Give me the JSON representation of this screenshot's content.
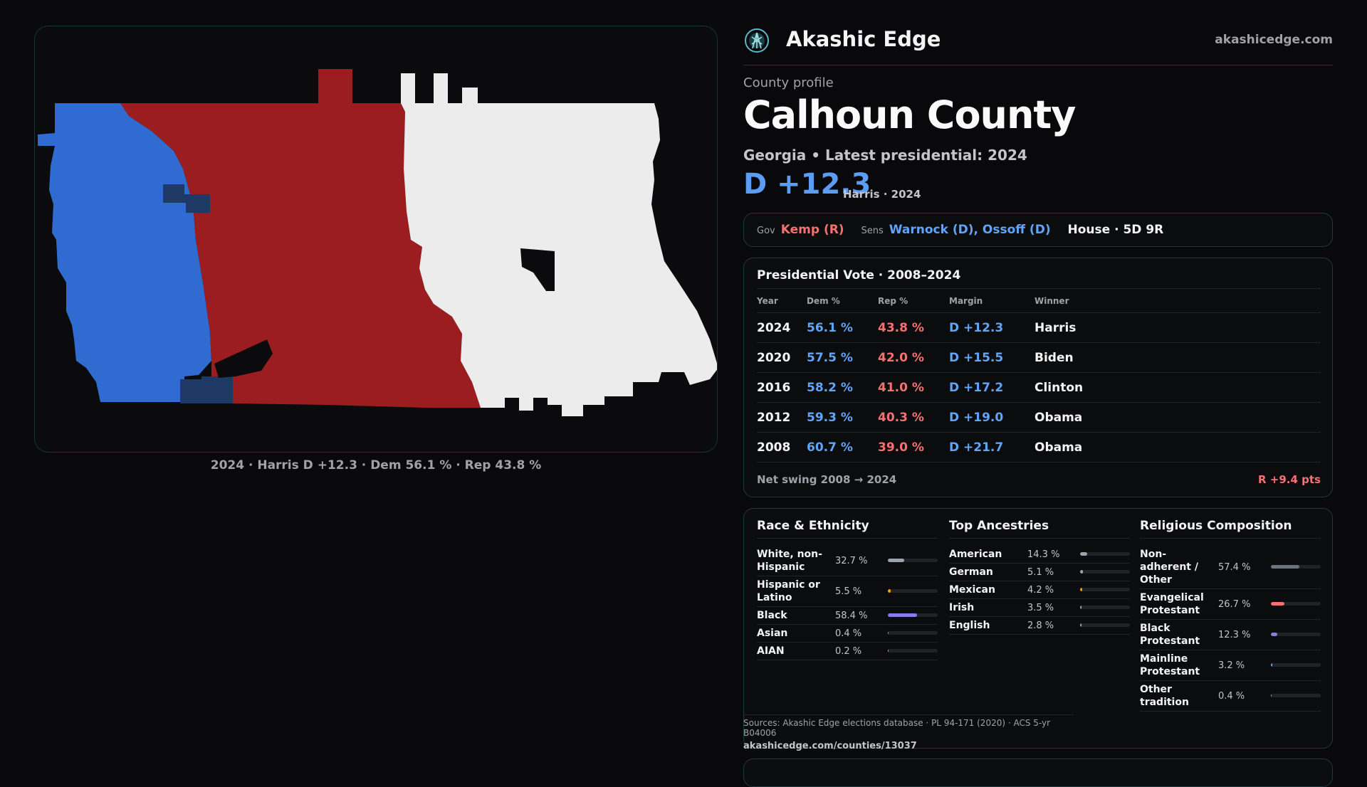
{
  "brand": {
    "name": "Akashic Edge",
    "url": "akashicedge.com"
  },
  "eyebrow": "County profile",
  "county": "Calhoun County",
  "subtitle": "Georgia • Latest presidential: 2024",
  "headline_margin": "D +12.3",
  "headline_note": "Harris · 2024",
  "map": {
    "caption": "2024 · Harris D +12.3 · Dem 56.1 % · Rep 43.8 %",
    "colors": {
      "dem": "#2f6bd0",
      "rep": "#9b1d20",
      "neutral": "#ececed"
    }
  },
  "officials": {
    "gov_label": "Gov",
    "gov": "Kemp (R)",
    "sens_label": "Sens",
    "sens": "Warnock (D), Ossoff (D)",
    "house": "House · 5D 9R"
  },
  "presidential": {
    "title": "Presidential Vote · 2008–2024",
    "headers": {
      "year": "Year",
      "dem": "Dem %",
      "rep": "Rep %",
      "margin": "Margin",
      "winner": "Winner"
    },
    "rows": [
      {
        "year": "2024",
        "dem": "56.1 %",
        "rep": "43.8 %",
        "margin": "D +12.3",
        "winner": "Harris"
      },
      {
        "year": "2020",
        "dem": "57.5 %",
        "rep": "42.0 %",
        "margin": "D +15.5",
        "winner": "Biden"
      },
      {
        "year": "2016",
        "dem": "58.2 %",
        "rep": "41.0 %",
        "margin": "D +17.2",
        "winner": "Clinton"
      },
      {
        "year": "2012",
        "dem": "59.3 %",
        "rep": "40.3 %",
        "margin": "D +19.0",
        "winner": "Obama"
      },
      {
        "year": "2008",
        "dem": "60.7 %",
        "rep": "39.0 %",
        "margin": "D +21.7",
        "winner": "Obama"
      }
    ],
    "swing_label": "Net swing 2008 → 2024",
    "swing_value": "R +9.4 pts"
  },
  "race": {
    "title": "Race & Ethnicity",
    "items": [
      {
        "label": "White, non-Hispanic",
        "value": "32.7 %",
        "pct": 32.7,
        "color": "#9ca3af"
      },
      {
        "label": "Hispanic or Latino",
        "value": "5.5 %",
        "pct": 5.5,
        "color": "#f59e0b"
      },
      {
        "label": "Black",
        "value": "58.4 %",
        "pct": 58.4,
        "color": "#8b7be8"
      },
      {
        "label": "Asian",
        "value": "0.4 %",
        "pct": 0.4,
        "color": "#34d399"
      },
      {
        "label": "AIAN",
        "value": "0.2 %",
        "pct": 0.2,
        "color": "#f472b6"
      }
    ]
  },
  "ancestry": {
    "title": "Top Ancestries",
    "items": [
      {
        "label": "American",
        "value": "14.3 %",
        "pct": 14.3,
        "color": "#9ca3af"
      },
      {
        "label": "German",
        "value": "5.1 %",
        "pct": 5.1,
        "color": "#9ca3af"
      },
      {
        "label": "Mexican",
        "value": "4.2 %",
        "pct": 4.2,
        "color": "#f59e0b"
      },
      {
        "label": "Irish",
        "value": "3.5 %",
        "pct": 3.5,
        "color": "#9ca3af"
      },
      {
        "label": "English",
        "value": "2.8 %",
        "pct": 2.8,
        "color": "#9ca3af"
      }
    ]
  },
  "religion": {
    "title": "Religious Composition",
    "items": [
      {
        "label": "Non-adherent / Other",
        "value": "57.4 %",
        "pct": 57.4,
        "color": "#6b7280"
      },
      {
        "label": "Evangelical Protestant",
        "value": "26.7 %",
        "pct": 26.7,
        "color": "#f87171"
      },
      {
        "label": "Black Protestant",
        "value": "12.3 %",
        "pct": 12.3,
        "color": "#8b7be8"
      },
      {
        "label": "Mainline Protestant",
        "value": "3.2 %",
        "pct": 3.2,
        "color": "#60a5fa"
      },
      {
        "label": "Other tradition",
        "value": "0.4 %",
        "pct": 0.4,
        "color": "#9ca3af"
      }
    ]
  },
  "sources": {
    "text": "Sources: Akashic Edge elections database · PL 94-171 (2020) · ACS 5-yr B04006",
    "url": "akashicedge.com/counties/13037"
  }
}
